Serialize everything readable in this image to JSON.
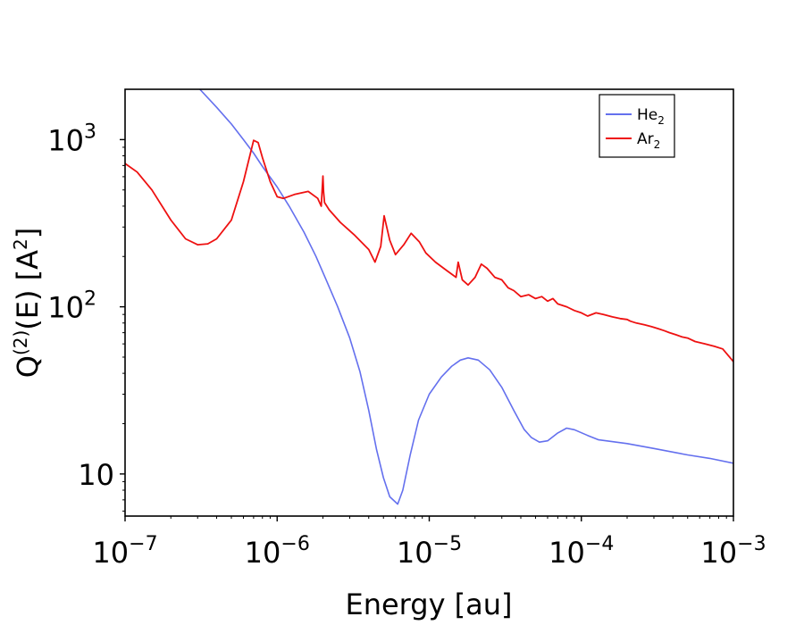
{
  "chart_data": {
    "type": "line",
    "title": "",
    "xlabel": "Energy [au]",
    "ylabel": "Q(2)(E) [A2]",
    "ylabel_parts": {
      "base": "Q",
      "sup": "(2)",
      "rest": "(E) [A",
      "sup2": "2",
      "end": "]"
    },
    "xscale": "log",
    "yscale": "log",
    "xlim": [
      1e-07,
      0.001
    ],
    "ylim": [
      5.6,
      2000
    ],
    "x_ticks": [
      {
        "value": 1e-07,
        "base": "10",
        "exp": "−7"
      },
      {
        "value": 1e-06,
        "base": "10",
        "exp": "−6"
      },
      {
        "value": 1e-05,
        "base": "10",
        "exp": "−5"
      },
      {
        "value": 0.0001,
        "base": "10",
        "exp": "−4"
      },
      {
        "value": 0.001,
        "base": "10",
        "exp": "−3"
      }
    ],
    "y_ticks": [
      {
        "value": 10,
        "base": "10",
        "exp": ""
      },
      {
        "value": 100,
        "base": "10",
        "exp": "2"
      },
      {
        "value": 1000,
        "base": "10",
        "exp": "3"
      }
    ],
    "legend_position": "top-right",
    "series": [
      {
        "name": "He2",
        "label_base": "He",
        "label_sub": "2",
        "color": "#6470ee",
        "x": [
          3.1e-07,
          4e-07,
          5e-07,
          6e-07,
          7e-07,
          8e-07,
          1e-06,
          1.2e-06,
          1.5e-06,
          1.8e-06,
          2.1e-06,
          2.5e-06,
          3e-06,
          3.5e-06,
          4e-06,
          4.5e-06,
          5e-06,
          5.5e-06,
          6.2e-06,
          6.7e-06,
          7.5e-06,
          8.5e-06,
          1e-05,
          1.2e-05,
          1.4e-05,
          1.6e-05,
          1.8e-05,
          2.1e-05,
          2.5e-05,
          3e-05,
          3.6e-05,
          4.2e-05,
          4.7e-05,
          5.3e-05,
          6e-05,
          7e-05,
          8e-05,
          9e-05,
          0.00011,
          0.00013,
          0.0002,
          0.0003,
          0.0005,
          0.0007,
          0.001
        ],
        "values": [
          2000,
          1560,
          1240,
          1000,
          830,
          690,
          520,
          400,
          280,
          200,
          145,
          100,
          65,
          41,
          24,
          14,
          9.5,
          7.3,
          6.6,
          8.0,
          13.0,
          21,
          30,
          38,
          44,
          48,
          49.5,
          48,
          42,
          33,
          24,
          18.5,
          16.5,
          15.5,
          15.8,
          17.6,
          18.8,
          18.4,
          17.0,
          16.0,
          15.2,
          14.2,
          13.0,
          12.4,
          11.6
        ]
      },
      {
        "name": "Ar2",
        "label_base": "Ar",
        "label_sub": "2",
        "color": "#ee1111",
        "x": [
          1e-07,
          1.2e-07,
          1.5e-07,
          2e-07,
          2.5e-07,
          3e-07,
          3.5e-07,
          4e-07,
          5e-07,
          6e-07,
          7e-07,
          7.5e-07,
          8e-07,
          9e-07,
          1e-06,
          1.1e-06,
          1.3e-06,
          1.6e-06,
          1.85e-06,
          1.95e-06,
          2e-06,
          2.02e-06,
          2.05e-06,
          2.2e-06,
          2.6e-06,
          3.2e-06,
          4e-06,
          4.4e-06,
          4.8e-06,
          5.05e-06,
          5.5e-06,
          6e-06,
          6.8e-06,
          7.6e-06,
          8.6e-06,
          9.5e-06,
          1.1e-05,
          1.3e-05,
          1.5e-05,
          1.55e-05,
          1.65e-05,
          1.8e-05,
          2e-05,
          2.2e-05,
          2.4e-05,
          2.7e-05,
          3e-05,
          3.3e-05,
          3.6e-05,
          4e-05,
          4.5e-05,
          5e-05,
          5.5e-05,
          6e-05,
          6.5e-05,
          7e-05,
          8e-05,
          9e-05,
          0.0001,
          0.00011,
          0.000125,
          0.00014,
          0.00016,
          0.00018,
          0.0002,
          0.00021,
          0.00023,
          0.00026,
          0.00029,
          0.00032,
          0.00035,
          0.00038,
          0.00042,
          0.00046,
          0.0005,
          0.00056,
          0.00065,
          0.00075,
          0.00085,
          0.001
        ],
        "values": [
          720,
          640,
          500,
          330,
          255,
          235,
          238,
          255,
          330,
          560,
          990,
          960,
          780,
          560,
          455,
          445,
          470,
          490,
          445,
          400,
          605,
          490,
          420,
          380,
          320,
          270,
          220,
          185,
          230,
          350,
          250,
          205,
          235,
          275,
          245,
          210,
          185,
          165,
          150,
          185,
          145,
          135,
          150,
          180,
          170,
          150,
          145,
          130,
          125,
          115,
          118,
          112,
          115,
          108,
          112,
          104,
          100,
          95,
          92,
          88,
          92,
          90,
          87,
          85,
          84,
          82,
          80,
          78,
          76,
          74,
          72,
          70,
          68,
          66,
          65,
          62,
          60,
          58,
          56,
          47
        ]
      }
    ]
  }
}
